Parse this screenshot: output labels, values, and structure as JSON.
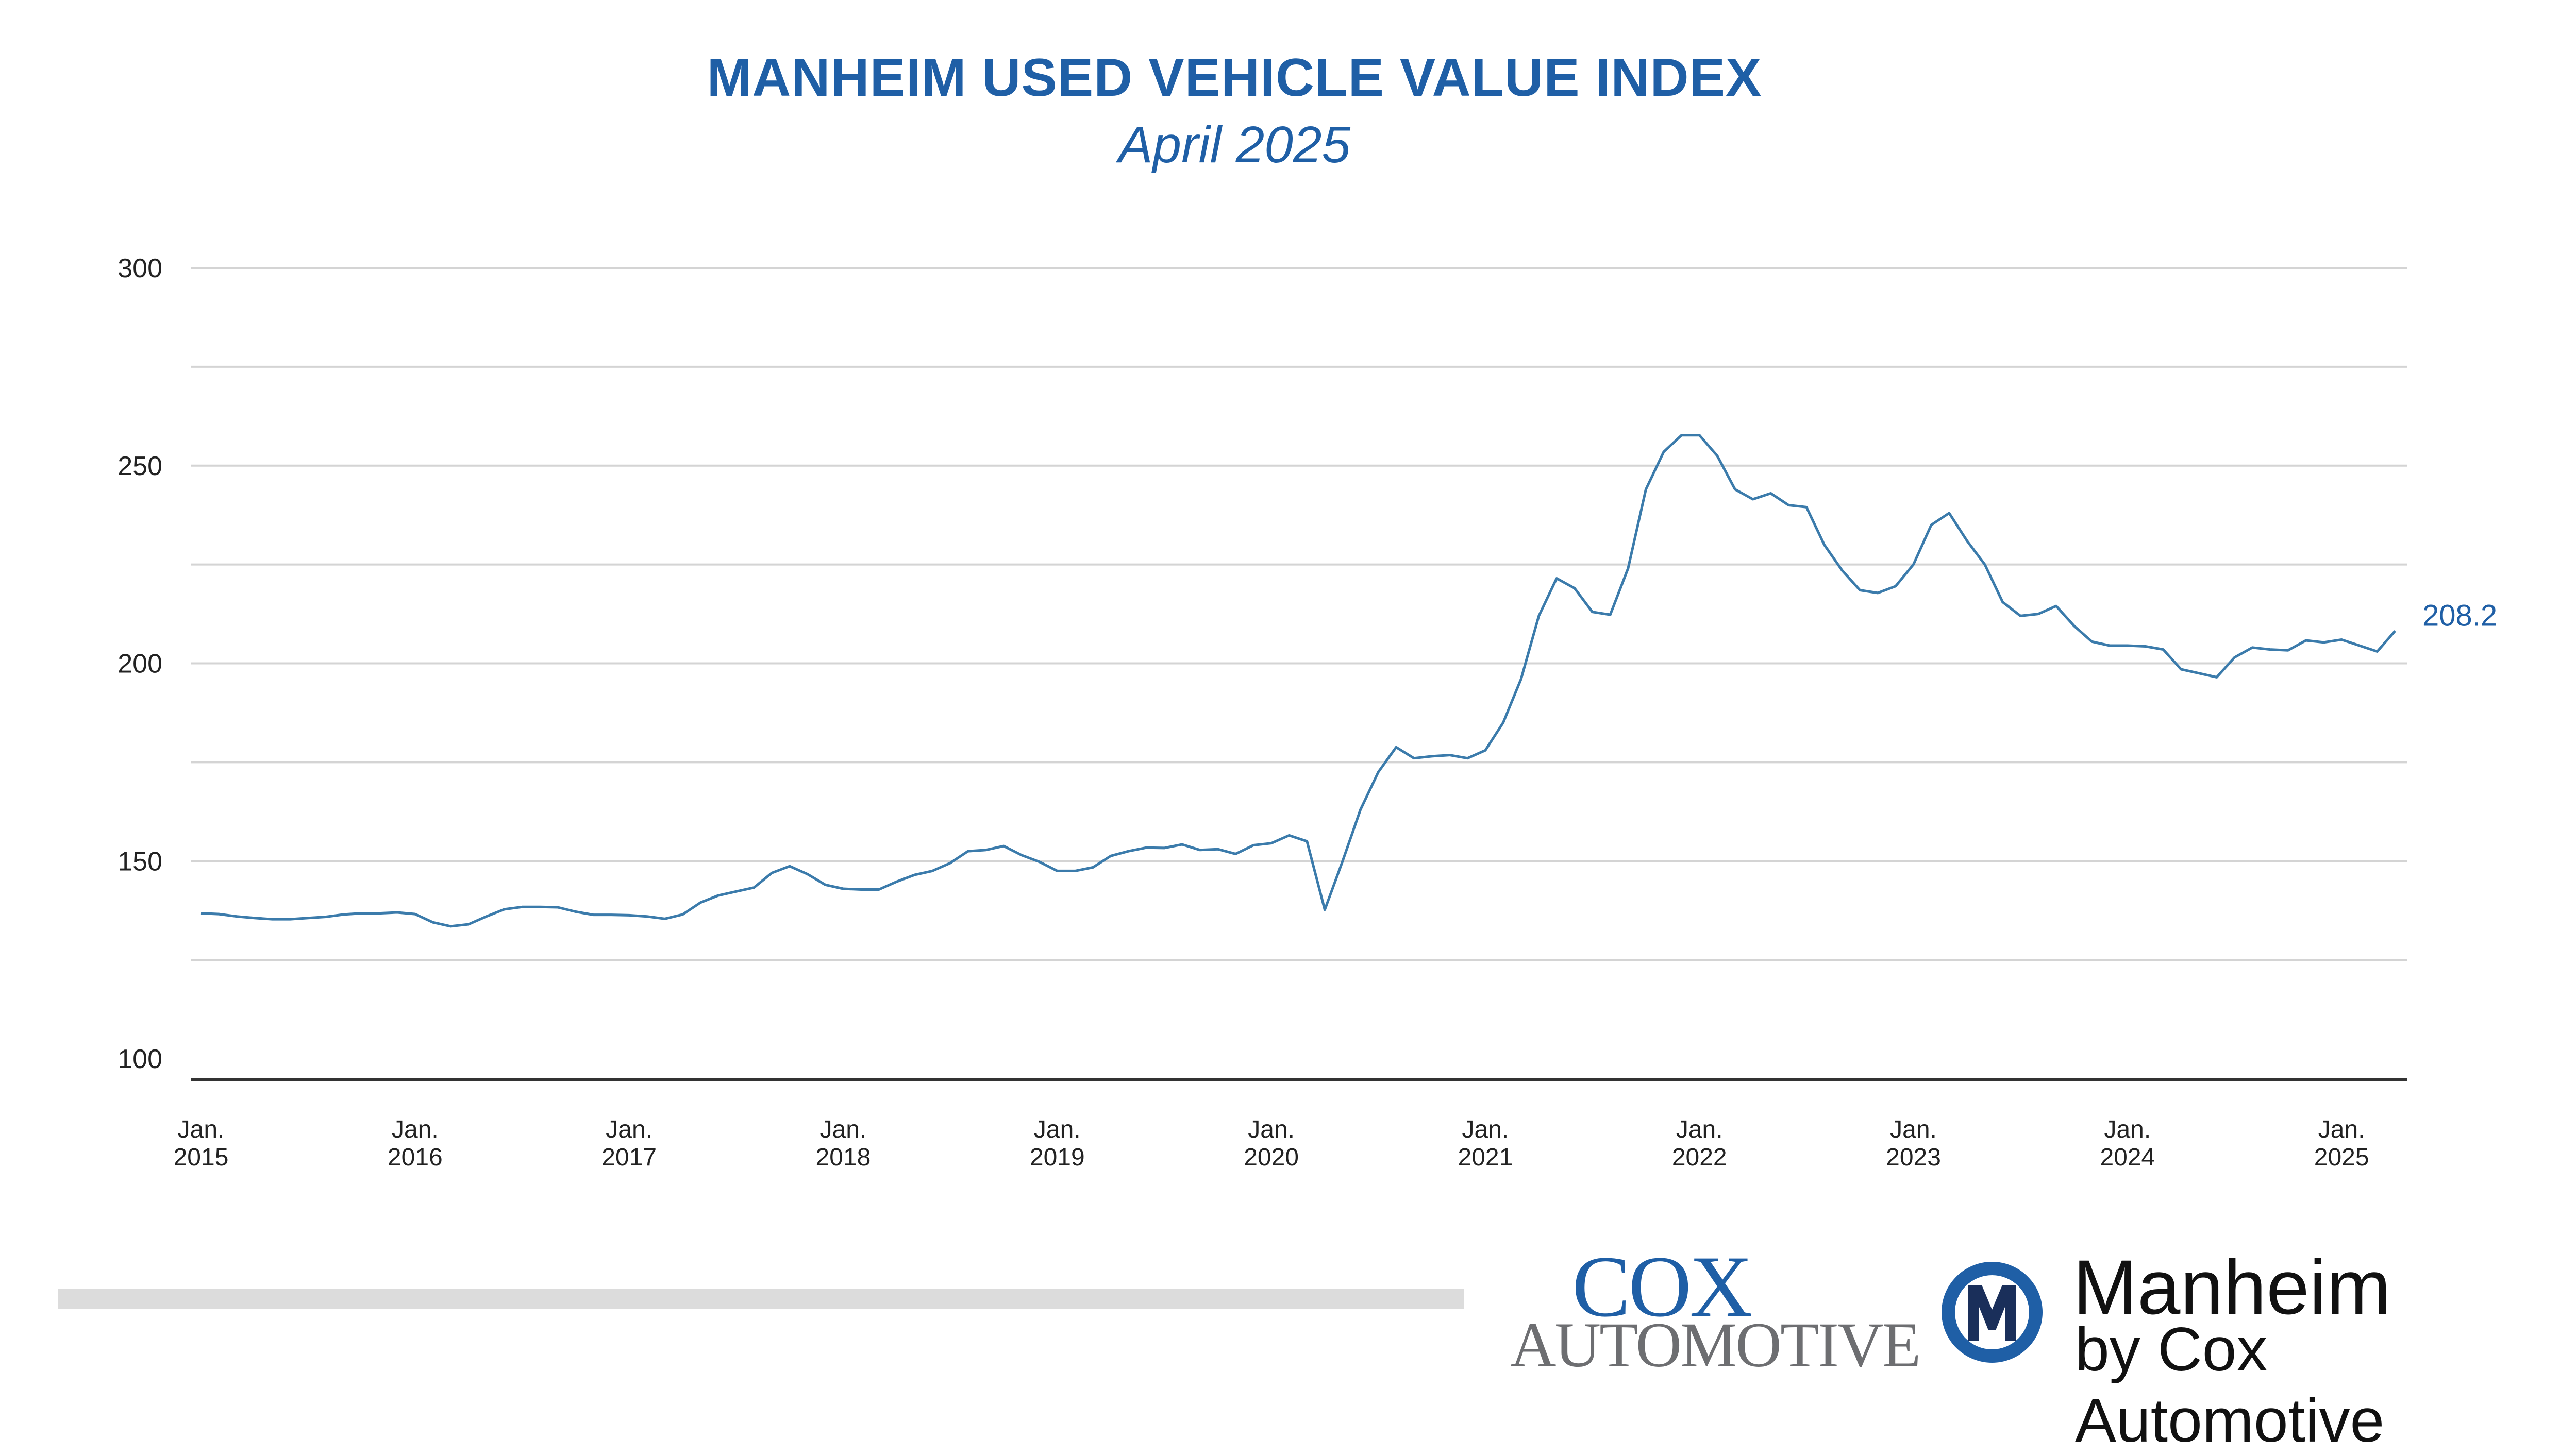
{
  "header": {
    "title": "MANHEIM USED VEHICLE VALUE INDEX",
    "subtitle": "April 2025"
  },
  "logos": {
    "cox_line1": "COX",
    "cox_line2": "AUTOMOTIVE",
    "manheim_word": "Manheim",
    "manheim_sub": "by Cox Automotive",
    "manheim_icon": "manheim-m-icon"
  },
  "colors": {
    "brand_blue": "#1f5fa6",
    "line": "#3b7bab",
    "grid": "#d4d4d4",
    "axis": "#333333"
  },
  "chart_data": {
    "type": "line",
    "title": "MANHEIM USED VEHICLE VALUE INDEX",
    "subtitle": "April 2025",
    "xlabel": "",
    "ylabel": "",
    "ylim": [
      100,
      300
    ],
    "yticks": [
      100,
      150,
      200,
      250,
      300
    ],
    "grid": true,
    "x_range": [
      "2015-01",
      "2025-04"
    ],
    "x_ticks": [
      {
        "date": "2015-01",
        "line1": "Jan.",
        "line2": "2015"
      },
      {
        "date": "2016-01",
        "line1": "Jan.",
        "line2": "2016"
      },
      {
        "date": "2017-01",
        "line1": "Jan.",
        "line2": "2017"
      },
      {
        "date": "2018-01",
        "line1": "Jan.",
        "line2": "2018"
      },
      {
        "date": "2019-01",
        "line1": "Jan.",
        "line2": "2019"
      },
      {
        "date": "2020-01",
        "line1": "Jan.",
        "line2": "2020"
      },
      {
        "date": "2021-01",
        "line1": "Jan.",
        "line2": "2021"
      },
      {
        "date": "2022-01",
        "line1": "Jan.",
        "line2": "2022"
      },
      {
        "date": "2023-01",
        "line1": "Jan.",
        "line2": "2023"
      },
      {
        "date": "2024-01",
        "line1": "Jan.",
        "line2": "2024"
      },
      {
        "date": "2025-01",
        "line1": "Jan.",
        "line2": "2025"
      }
    ],
    "end_label": "208.2",
    "series": [
      {
        "points": [
          [
            "2015-01",
            136.8
          ],
          [
            "2015-02",
            136.6
          ],
          [
            "2015-03",
            136.0
          ],
          [
            "2015-04",
            135.6
          ],
          [
            "2015-05",
            135.3
          ],
          [
            "2015-06",
            135.3
          ],
          [
            "2015-07",
            135.6
          ],
          [
            "2015-08",
            135.9
          ],
          [
            "2015-09",
            136.5
          ],
          [
            "2015-10",
            136.8
          ],
          [
            "2015-11",
            136.8
          ],
          [
            "2015-12",
            137.0
          ],
          [
            "2016-01",
            136.6
          ],
          [
            "2016-02",
            134.5
          ],
          [
            "2016-03",
            133.5
          ],
          [
            "2016-04",
            134.0
          ],
          [
            "2016-05",
            136.0
          ],
          [
            "2016-06",
            137.8
          ],
          [
            "2016-07",
            138.4
          ],
          [
            "2016-08",
            138.4
          ],
          [
            "2016-09",
            138.3
          ],
          [
            "2016-10",
            137.2
          ],
          [
            "2016-11",
            136.4
          ],
          [
            "2016-12",
            136.4
          ],
          [
            "2017-01",
            136.3
          ],
          [
            "2017-02",
            136.0
          ],
          [
            "2017-03",
            135.4
          ],
          [
            "2017-04",
            136.5
          ],
          [
            "2017-05",
            139.5
          ],
          [
            "2017-06",
            141.3
          ],
          [
            "2017-07",
            142.3
          ],
          [
            "2017-08",
            143.3
          ],
          [
            "2017-09",
            147.0
          ],
          [
            "2017-10",
            148.7
          ],
          [
            "2017-11",
            146.7
          ],
          [
            "2017-12",
            144.0
          ],
          [
            "2018-01",
            143.0
          ],
          [
            "2018-02",
            142.8
          ],
          [
            "2018-03",
            142.8
          ],
          [
            "2018-04",
            144.8
          ],
          [
            "2018-05",
            146.5
          ],
          [
            "2018-06",
            147.5
          ],
          [
            "2018-07",
            149.5
          ],
          [
            "2018-08",
            152.5
          ],
          [
            "2018-09",
            152.8
          ],
          [
            "2018-10",
            153.8
          ],
          [
            "2018-11",
            151.5
          ],
          [
            "2018-12",
            149.8
          ],
          [
            "2019-01",
            147.5
          ],
          [
            "2019-02",
            147.5
          ],
          [
            "2019-03",
            148.4
          ],
          [
            "2019-04",
            151.3
          ],
          [
            "2019-05",
            152.5
          ],
          [
            "2019-06",
            153.4
          ],
          [
            "2019-07",
            153.3
          ],
          [
            "2019-08",
            154.2
          ],
          [
            "2019-09",
            152.8
          ],
          [
            "2019-10",
            153.0
          ],
          [
            "2019-11",
            151.8
          ],
          [
            "2019-12",
            154.0
          ],
          [
            "2020-01",
            154.5
          ],
          [
            "2020-02",
            156.5
          ],
          [
            "2020-03",
            155.0
          ],
          [
            "2020-04",
            137.7
          ],
          [
            "2020-05",
            150.0
          ],
          [
            "2020-06",
            163.0
          ],
          [
            "2020-07",
            172.5
          ],
          [
            "2020-08",
            178.8
          ],
          [
            "2020-09",
            176.0
          ],
          [
            "2020-10",
            176.5
          ],
          [
            "2020-11",
            176.8
          ],
          [
            "2020-12",
            176.0
          ],
          [
            "2021-01",
            178.0
          ],
          [
            "2021-02",
            185.0
          ],
          [
            "2021-03",
            196.0
          ],
          [
            "2021-04",
            212.0
          ],
          [
            "2021-05",
            221.5
          ],
          [
            "2021-06",
            219.0
          ],
          [
            "2021-07",
            213.0
          ],
          [
            "2021-08",
            212.3
          ],
          [
            "2021-09",
            224.0
          ],
          [
            "2021-10",
            244.0
          ],
          [
            "2021-11",
            253.5
          ],
          [
            "2021-12",
            257.7
          ],
          [
            "2022-01",
            257.7
          ],
          [
            "2022-02",
            252.5
          ],
          [
            "2022-03",
            244.0
          ],
          [
            "2022-04",
            241.5
          ],
          [
            "2022-05",
            243.0
          ],
          [
            "2022-06",
            240.0
          ],
          [
            "2022-07",
            239.5
          ],
          [
            "2022-08",
            230.0
          ],
          [
            "2022-09",
            223.5
          ],
          [
            "2022-10",
            218.5
          ],
          [
            "2022-11",
            217.8
          ],
          [
            "2022-12",
            219.5
          ],
          [
            "2023-01",
            225.0
          ],
          [
            "2023-02",
            235.0
          ],
          [
            "2023-03",
            238.0
          ],
          [
            "2023-04",
            231.0
          ],
          [
            "2023-05",
            225.0
          ],
          [
            "2023-06",
            215.5
          ],
          [
            "2023-07",
            212.0
          ],
          [
            "2023-08",
            212.5
          ],
          [
            "2023-09",
            214.5
          ],
          [
            "2023-10",
            209.5
          ],
          [
            "2023-11",
            205.5
          ],
          [
            "2023-12",
            204.5
          ],
          [
            "2024-01",
            204.5
          ],
          [
            "2024-02",
            204.3
          ],
          [
            "2024-03",
            203.5
          ],
          [
            "2024-04",
            198.5
          ],
          [
            "2024-05",
            197.5
          ],
          [
            "2024-06",
            196.5
          ],
          [
            "2024-07",
            201.5
          ],
          [
            "2024-08",
            204.0
          ],
          [
            "2024-09",
            203.5
          ],
          [
            "2024-10",
            203.3
          ],
          [
            "2024-11",
            205.8
          ],
          [
            "2024-12",
            205.3
          ],
          [
            "2025-01",
            206.0
          ],
          [
            "2025-02",
            204.5
          ],
          [
            "2025-03",
            203.0
          ],
          [
            "2025-04",
            208.2
          ]
        ]
      }
    ]
  }
}
